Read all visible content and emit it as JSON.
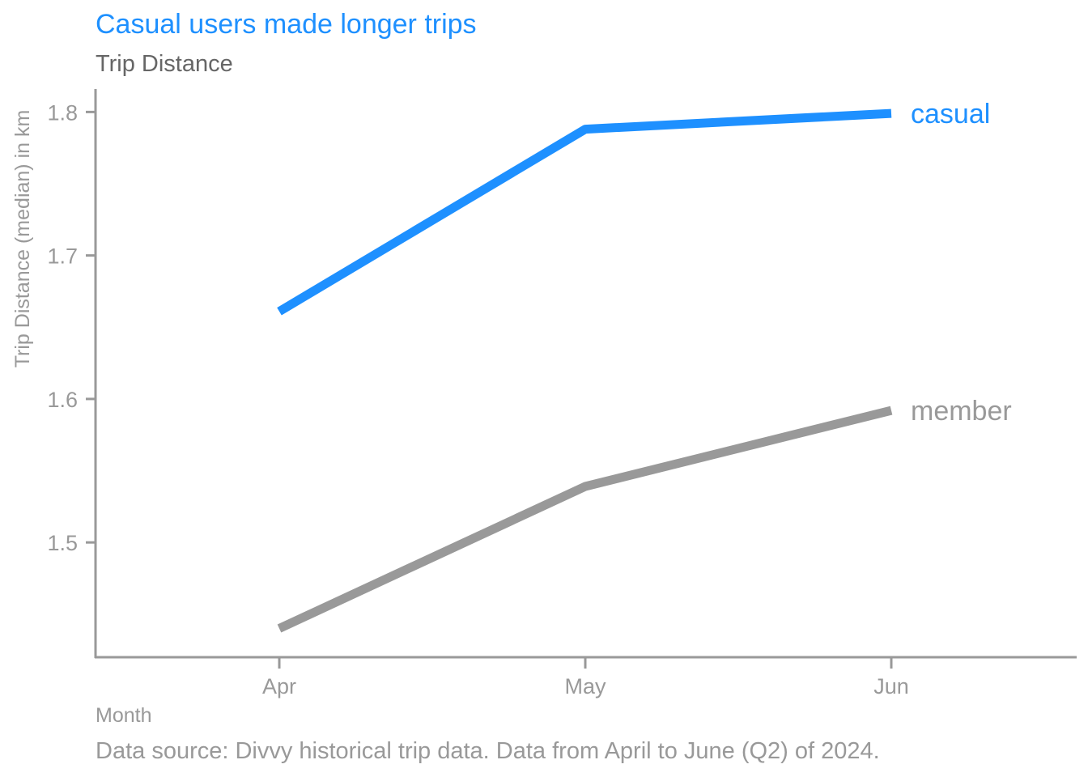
{
  "chart_data": {
    "type": "line",
    "title": "Casual users made longer trips",
    "subtitle": "Trip Distance",
    "xlabel": "Month",
    "ylabel": "Trip Distance (median) in km",
    "caption": "Data source: Divvy historical trip data. Data from April to June (Q2) of 2024.",
    "categories": [
      "Apr",
      "May",
      "Jun"
    ],
    "ylim": [
      1.42,
      1.816
    ],
    "yticks": [
      1.5,
      1.6,
      1.7,
      1.8
    ],
    "ytick_labels": [
      "1.5",
      "1.6",
      "1.7",
      "1.8"
    ],
    "grid": false,
    "legend": "direct labels at line ends",
    "series": [
      {
        "name": "casual",
        "values": [
          1.661,
          1.788,
          1.799
        ],
        "color": "#1E90FF"
      },
      {
        "name": "member",
        "values": [
          1.44,
          1.539,
          1.592
        ],
        "color": "#999999"
      }
    ],
    "colors": {
      "title": "#1E90FF",
      "subtitle": "#666666",
      "axis": "#999999",
      "tick_text": "#999999"
    }
  }
}
